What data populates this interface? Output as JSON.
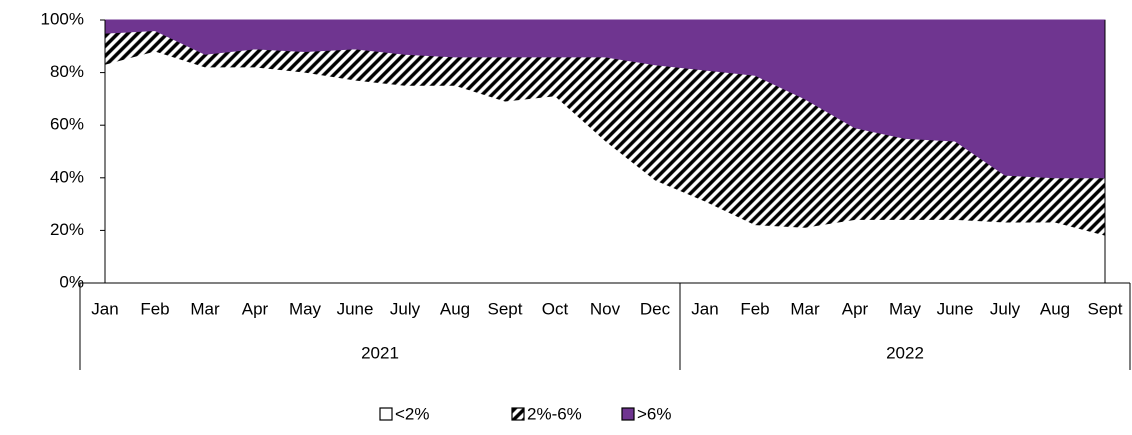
{
  "chart_data": {
    "type": "stacked-area",
    "categories": [
      "Jan",
      "Feb",
      "Mar",
      "Apr",
      "May",
      "June",
      "July",
      "Aug",
      "Sept",
      "Oct",
      "Nov",
      "Dec",
      "Jan",
      "Feb",
      "Mar",
      "Apr",
      "May",
      "June",
      "July",
      "Aug",
      "Sept"
    ],
    "groups": [
      {
        "label": "2021",
        "count": 12
      },
      {
        "label": "2022",
        "count": 9
      }
    ],
    "series": [
      {
        "name": "<2%",
        "color": "#ffffff",
        "values": [
          83,
          88,
          82,
          82,
          80,
          77,
          75,
          75,
          69,
          71,
          54,
          39,
          31,
          22,
          21,
          24,
          24,
          24,
          23,
          23,
          18
        ]
      },
      {
        "name": "2%-6%",
        "color": "#000000",
        "hatch": true,
        "values": [
          12,
          8,
          5,
          7,
          8,
          12,
          12,
          11,
          17,
          15,
          32,
          44,
          50,
          57,
          49,
          35,
          31,
          30,
          18,
          17,
          22
        ]
      },
      {
        "name": ">6%",
        "color": "#6f3590",
        "values": [
          5,
          4,
          13,
          11,
          12,
          11,
          13,
          14,
          14,
          14,
          14,
          17,
          19,
          21,
          30,
          41,
          45,
          46,
          59,
          60,
          60
        ]
      }
    ],
    "ylim": [
      0,
      100
    ],
    "yticks": [
      {
        "value": 0,
        "label": "0%"
      },
      {
        "value": 20,
        "label": "20%"
      },
      {
        "value": 40,
        "label": "40%"
      },
      {
        "value": 60,
        "label": "60%"
      },
      {
        "value": 80,
        "label": "80%"
      },
      {
        "value": 100,
        "label": "100%"
      }
    ],
    "legend": "bottom"
  }
}
